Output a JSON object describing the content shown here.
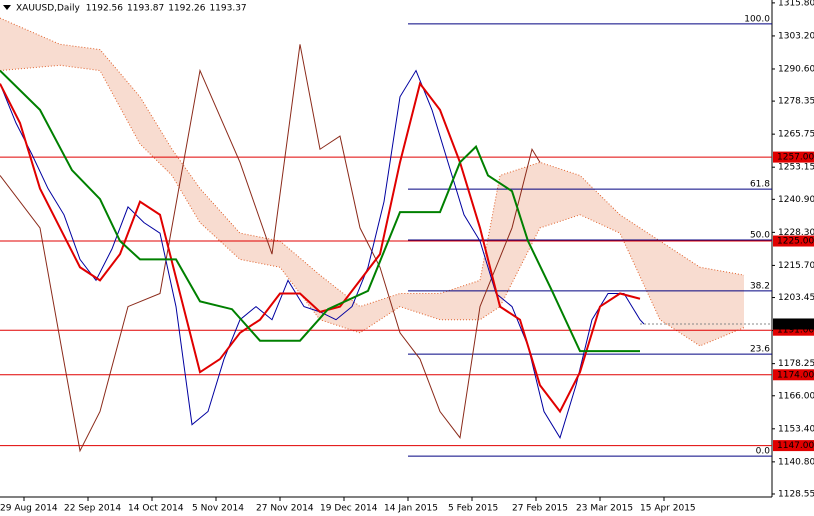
{
  "chart_data": {
    "type": "line",
    "title": "XAUUSD,Daily",
    "ohlc": [
      1192.56,
      1193.87,
      1192.26,
      1193.37
    ],
    "xlim": [
      0,
      193
    ],
    "xticks": [
      {
        "value": 6,
        "label": "29 Aug 2014"
      },
      {
        "value": 22,
        "label": "22 Sep 2014"
      },
      {
        "value": 38,
        "label": "14 Oct 2014"
      },
      {
        "value": 54,
        "label": "5 Nov 2014"
      },
      {
        "value": 70,
        "label": "27 Nov 2014"
      },
      {
        "value": 86,
        "label": "19 Dec 2014"
      },
      {
        "value": 102,
        "label": "14 Jan 2015"
      },
      {
        "value": 118,
        "label": "5 Feb 2015"
      },
      {
        "value": 134,
        "label": "27 Feb 2015"
      },
      {
        "value": 150,
        "label": "23 Mar 2015"
      },
      {
        "value": 166,
        "label": "15 Apr 2015"
      }
    ],
    "ylim": [
      1127.4,
      1316.9
    ],
    "yticks": [
      {
        "value": 1315.8,
        "label": "1315.80"
      },
      {
        "value": 1303.2,
        "label": "1303.20"
      },
      {
        "value": 1290.6,
        "label": "1290.60"
      },
      {
        "value": 1278.35,
        "label": "1278.35"
      },
      {
        "value": 1265.75,
        "label": "1265.75"
      },
      {
        "value": 1253.15,
        "label": "1253.15"
      },
      {
        "value": 1240.9,
        "label": "1240.90"
      },
      {
        "value": 1228.3,
        "label": "1228.30"
      },
      {
        "value": 1215.7,
        "label": "1215.70"
      },
      {
        "value": 1203.45,
        "label": "1203.45"
      },
      {
        "value": 1190.85,
        "label": "1190.85"
      },
      {
        "value": 1178.25,
        "label": "1178.25"
      },
      {
        "value": 1166,
        "label": "1166.00"
      },
      {
        "value": 1153.4,
        "label": "1153.40"
      },
      {
        "value": 1140.8,
        "label": "1140.80"
      },
      {
        "value": 1128.55,
        "label": "1128.55"
      }
    ],
    "levels_color": "#e00000",
    "levels": [
      {
        "value": 1257,
        "label": "1257.00"
      },
      {
        "value": 1225,
        "label": "1225.00"
      },
      {
        "value": 1191,
        "label": "1191.00"
      },
      {
        "value": 1174,
        "label": "1174.00"
      },
      {
        "value": 1147,
        "label": "1147.00"
      }
    ],
    "last_price": {
      "value": 1193.37,
      "label": "1193.37"
    },
    "fibo_color": "#000080",
    "fibo": [
      {
        "label": "100.0",
        "value": 1307.8
      },
      {
        "label": "61.8",
        "value": 1244.8
      },
      {
        "label": "50.0",
        "value": 1225.4
      },
      {
        "label": "38.2",
        "value": 1206.0
      },
      {
        "label": "23.6",
        "value": 1181.9
      },
      {
        "label": "0.0",
        "value": 1143.0
      }
    ],
    "cloud": {
      "color": "#e0602a",
      "x": [
        0,
        15,
        25,
        35,
        43,
        50,
        60,
        70,
        80,
        90,
        100,
        110,
        120,
        125,
        135,
        145,
        155,
        165,
        175,
        186
      ],
      "upper": [
        1310,
        1300,
        1298,
        1280,
        1260,
        1245,
        1228,
        1225,
        1212,
        1200,
        1205,
        1205,
        1210,
        1250,
        1255,
        1250,
        1235,
        1225,
        1215,
        1212
      ],
      "lower": [
        1290,
        1292,
        1290,
        1262,
        1250,
        1232,
        1218,
        1215,
        1195,
        1190,
        1200,
        1195,
        1195,
        1200,
        1230,
        1235,
        1228,
        1195,
        1185,
        1192
      ]
    },
    "series": [
      {
        "color": "#8b2a1a",
        "x": [
          0,
          10,
          20,
          25,
          32,
          40,
          50,
          60,
          68,
          75,
          80,
          85,
          90,
          95,
          100,
          105,
          110,
          115,
          120,
          128,
          133,
          135
        ],
        "values": [
          1250,
          1230,
          1145,
          1160,
          1200,
          1205,
          1290,
          1255,
          1220,
          1300,
          1260,
          1265,
          1230,
          1215,
          1190,
          1180,
          1160,
          1150,
          1200,
          1230,
          1260,
          1255
        ]
      },
      {
        "color": "#0000a0",
        "x": [
          0,
          4,
          8,
          12,
          16,
          20,
          24,
          28,
          32,
          36,
          40,
          44,
          48,
          52,
          56,
          60,
          64,
          68,
          72,
          76,
          80,
          84,
          88,
          92,
          96,
          100,
          104,
          108,
          112,
          116,
          120,
          124,
          128,
          132,
          136,
          140,
          144,
          148,
          152,
          156,
          160,
          161
        ],
        "values": [
          1285,
          1270,
          1258,
          1245,
          1235,
          1218,
          1210,
          1222,
          1238,
          1232,
          1228,
          1200,
          1155,
          1160,
          1180,
          1195,
          1200,
          1195,
          1210,
          1200,
          1198,
          1195,
          1200,
          1215,
          1240,
          1280,
          1290,
          1275,
          1255,
          1235,
          1225,
          1205,
          1200,
          1185,
          1160,
          1150,
          1170,
          1195,
          1205,
          1205,
          1195,
          1193.37
        ]
      },
      {
        "color": "#e00000",
        "x": [
          0,
          5,
          10,
          15,
          20,
          25,
          30,
          35,
          40,
          45,
          50,
          55,
          60,
          65,
          70,
          75,
          80,
          85,
          90,
          95,
          100,
          105,
          110,
          115,
          120,
          125,
          130,
          135,
          140,
          145,
          150,
          155,
          160
        ],
        "values": [
          1285,
          1270,
          1245,
          1230,
          1215,
          1210,
          1220,
          1240,
          1235,
          1205,
          1175,
          1180,
          1190,
          1195,
          1205,
          1205,
          1198,
          1200,
          1210,
          1220,
          1255,
          1285,
          1275,
          1255,
          1230,
          1200,
          1195,
          1170,
          1160,
          1175,
          1200,
          1205,
          1203
        ]
      },
      {
        "color": "#008000",
        "x": [
          0,
          10,
          18,
          25,
          30,
          35,
          44,
          50,
          58,
          65,
          75,
          82,
          92,
          100,
          110,
          115,
          119,
          122,
          128,
          132,
          138,
          145,
          160
        ],
        "values": [
          1290,
          1275,
          1252,
          1241,
          1225,
          1218,
          1218,
          1202,
          1199,
          1187,
          1187,
          1199,
          1206,
          1236,
          1236,
          1255,
          1261,
          1250,
          1244,
          1225,
          1206,
          1183,
          1183
        ]
      }
    ]
  }
}
